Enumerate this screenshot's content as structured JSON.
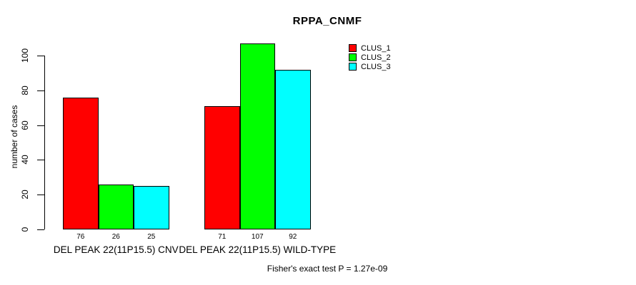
{
  "chart_data": {
    "type": "bar",
    "title": "RPPA_CNMF",
    "ylabel": "number of cases",
    "xlabel": "",
    "footer": "Fisher's exact test P = 1.27e-09",
    "categories": [
      "DEL PEAK 22(11P15.5) CNV",
      "DEL PEAK 22(11P15.5) WILD-TYPE"
    ],
    "series": [
      {
        "name": "CLUS_1",
        "color": "#ff0000",
        "values": [
          76,
          71
        ]
      },
      {
        "name": "CLUS_2",
        "color": "#00ff00",
        "values": [
          26,
          107
        ]
      },
      {
        "name": "CLUS_3",
        "color": "#00ffff",
        "values": [
          25,
          92
        ]
      }
    ],
    "yticks": [
      0,
      20,
      40,
      60,
      80,
      100
    ],
    "ylim": [
      0,
      107
    ],
    "grid": false,
    "legend_position": "top-right",
    "bar_border_color": "#000000",
    "background_color": "#ffffff"
  }
}
